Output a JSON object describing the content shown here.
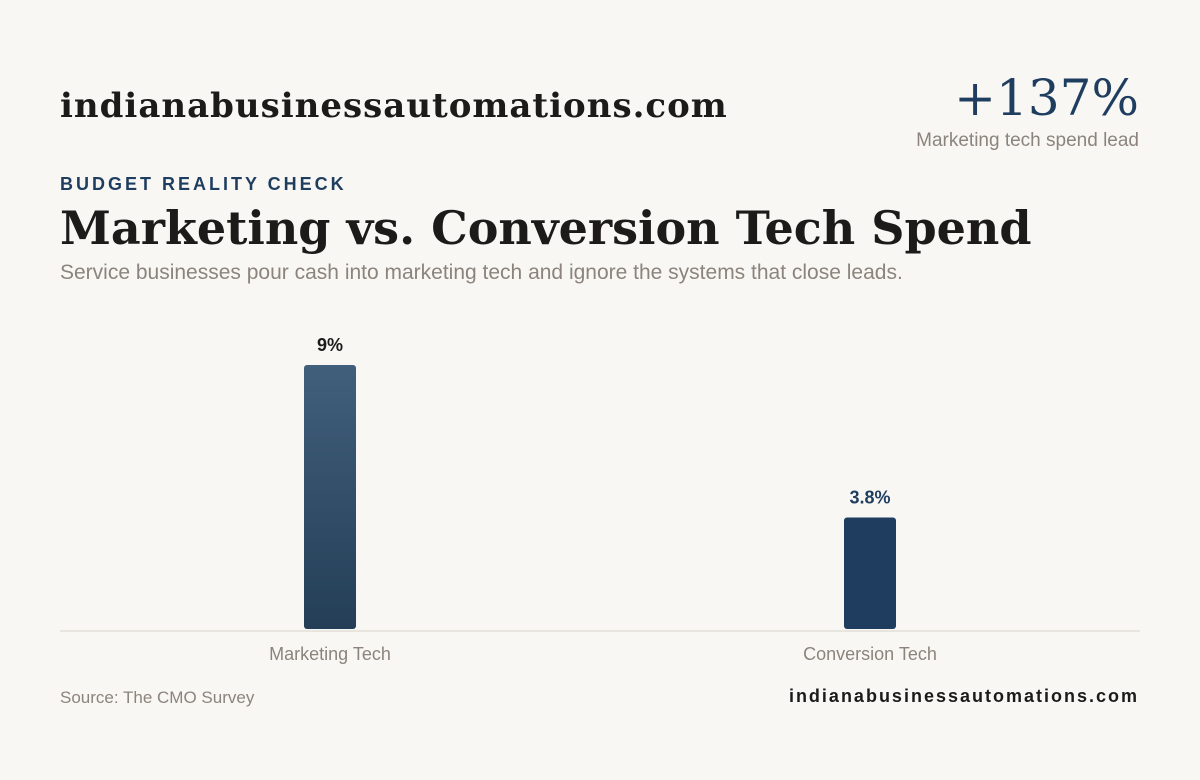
{
  "header": {
    "brand": "indianabusinessautomations.com",
    "stat_value": "+137%",
    "stat_label": "Marketing tech spend lead"
  },
  "eyebrow": "BUDGET REALITY CHECK",
  "title": "Marketing vs. Conversion Tech Spend",
  "subtitle": "Service businesses pour cash into marketing tech and ignore the systems that close leads.",
  "chart_data": {
    "type": "bar",
    "categories": [
      "Marketing Tech",
      "Conversion Tech"
    ],
    "values": [
      9,
      3.8
    ],
    "value_labels": [
      "9%",
      "3.8%"
    ],
    "ylim": [
      0,
      9
    ],
    "grid": false,
    "xlabel": "",
    "ylabel": "",
    "colors": [
      "#3d5b77",
      "#1f3e5f"
    ]
  },
  "footer": {
    "source": "Source: The CMO Survey",
    "brand": "indianabusinessautomations.com"
  }
}
